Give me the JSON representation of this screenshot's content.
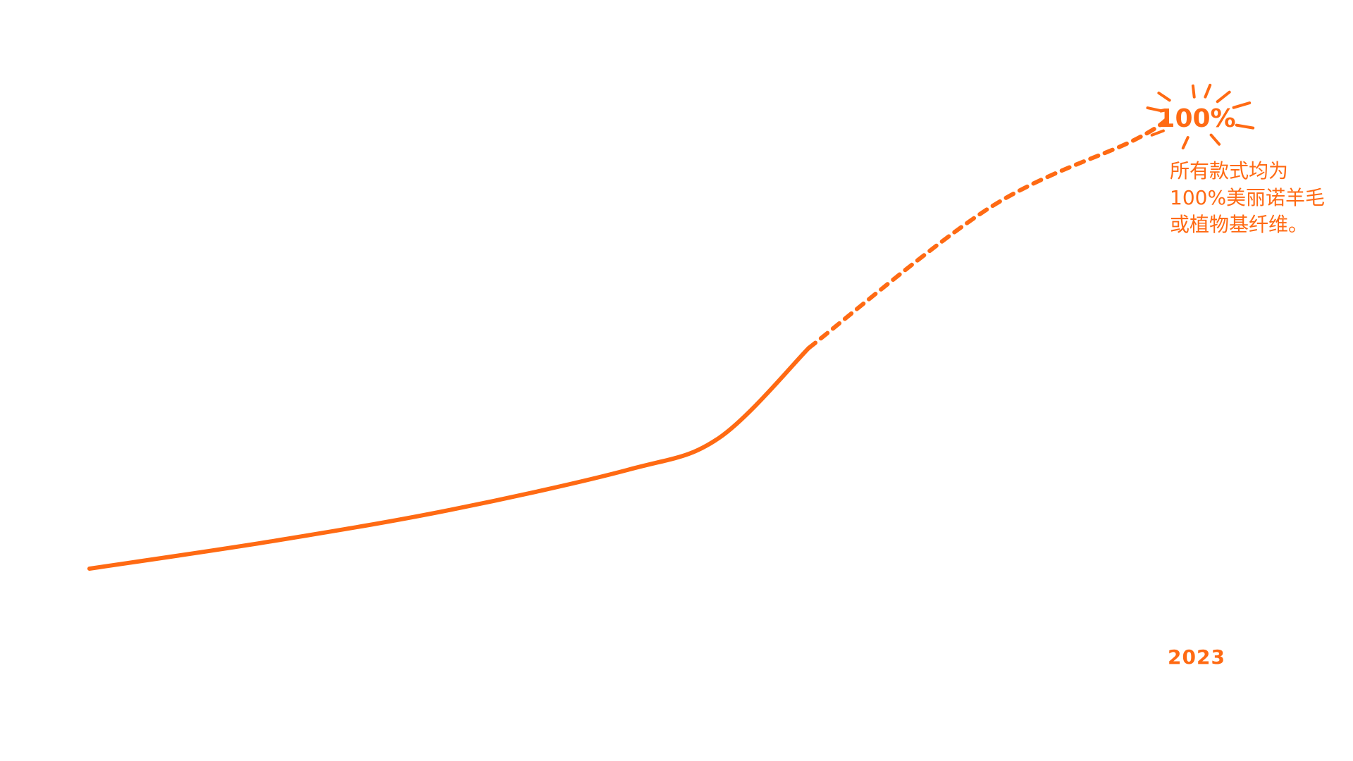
{
  "colors": {
    "accent": "#ff6a13"
  },
  "chart_data": {
    "type": "line",
    "x_labels": [
      "2023"
    ],
    "series": [
      {
        "points": [
          {
            "x": 0.0,
            "y": 0
          },
          {
            "x": 1.0,
            "y": 6
          },
          {
            "x": 2.0,
            "y": 13
          },
          {
            "x": 3.0,
            "y": 22
          },
          {
            "x": 3.5,
            "y": 29
          },
          {
            "x": 4.0,
            "y": 49
          },
          {
            "x": 5.0,
            "y": 80
          },
          {
            "x": 5.8,
            "y": 95
          },
          {
            "x": 6.0,
            "y": 100
          }
        ],
        "solid_until_x": 4.0,
        "dashed_after_x": 4.0
      }
    ],
    "ylim": [
      0,
      100
    ],
    "xlim": [
      0,
      6
    ],
    "grid": false,
    "end_label": "100%",
    "annotation": "所有款式均为\n100%美丽诺羊毛\n或植物基纤维。"
  }
}
